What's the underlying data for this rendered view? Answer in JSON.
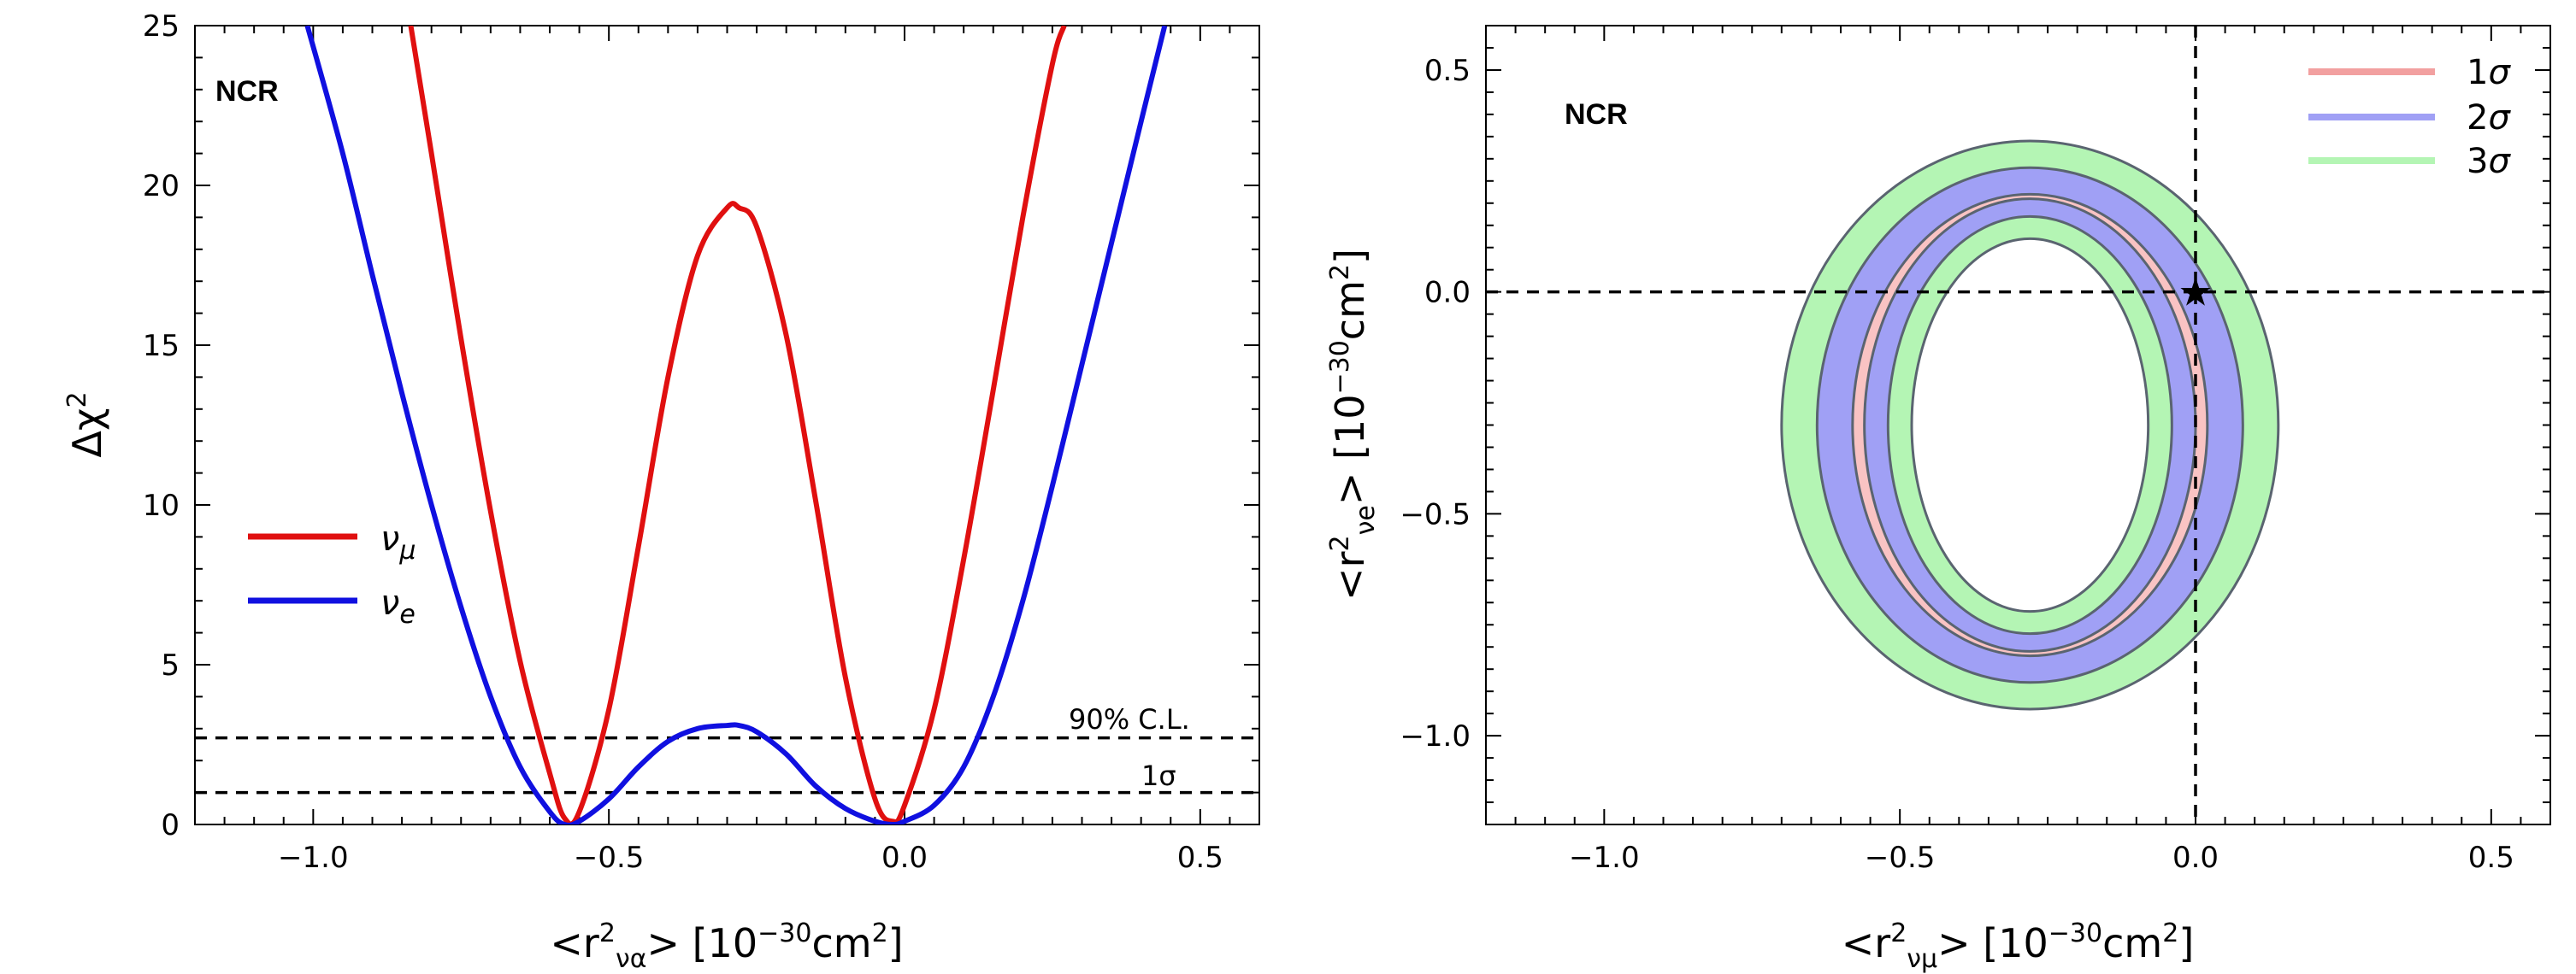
{
  "chart_data": [
    {
      "type": "line",
      "tag": "NCR",
      "xlabel": {
        "pre": "<r",
        "sup1": "2",
        "sub": "να",
        "post": "> [10",
        "sup2": "−30",
        "post2": "cm",
        "sup3": "2",
        "close": "]"
      },
      "ylabel": {
        "pre": "Δχ",
        "sup": "2"
      },
      "xlim": [
        -1.2,
        0.6
      ],
      "ylim": [
        0,
        25
      ],
      "xticks": [
        -1.0,
        -0.5,
        0.0,
        0.5
      ],
      "xtick_labels": [
        "−1.0",
        "−0.5",
        "0.0",
        "0.5"
      ],
      "yticks": [
        0,
        5,
        10,
        15,
        20,
        25
      ],
      "ytick_labels": [
        "0",
        "5",
        "10",
        "15",
        "20",
        "25"
      ],
      "series": [
        {
          "name": "ν_μ",
          "legend_main": "ν",
          "legend_sub": "μ",
          "color": "#e01010",
          "x": [
            -0.835,
            -0.8,
            -0.75,
            -0.7,
            -0.65,
            -0.6,
            -0.575,
            -0.55,
            -0.5,
            -0.45,
            -0.4,
            -0.35,
            -0.3,
            -0.28,
            -0.25,
            -0.2,
            -0.15,
            -0.1,
            -0.05,
            -0.02,
            0.0,
            0.05,
            0.1,
            0.15,
            0.2,
            0.25,
            0.27
          ],
          "y": [
            25,
            21.0,
            15.2,
            9.8,
            5.1,
            1.6,
            0.2,
            0.4,
            3.6,
            8.7,
            14.0,
            17.8,
            19.3,
            19.3,
            18.7,
            15.3,
            10.1,
            4.6,
            0.8,
            0.1,
            0.6,
            3.6,
            8.3,
            13.6,
            19.0,
            23.8,
            25
          ]
        },
        {
          "name": "ν_e",
          "legend_main": "ν",
          "legend_sub": "e",
          "color": "#1010e0",
          "x": [
            -1.01,
            -0.95,
            -0.9,
            -0.85,
            -0.8,
            -0.75,
            -0.7,
            -0.65,
            -0.6,
            -0.575,
            -0.55,
            -0.5,
            -0.45,
            -0.4,
            -0.35,
            -0.3,
            -0.28,
            -0.25,
            -0.2,
            -0.15,
            -0.1,
            -0.05,
            -0.02,
            0.0,
            0.05,
            0.1,
            0.15,
            0.2,
            0.25,
            0.3,
            0.35,
            0.4,
            0.44
          ],
          "y": [
            25,
            21.0,
            17.2,
            13.5,
            10.0,
            6.8,
            4.0,
            1.8,
            0.4,
            0.0,
            0.1,
            0.8,
            1.8,
            2.6,
            3.0,
            3.1,
            3.1,
            2.9,
            2.2,
            1.2,
            0.5,
            0.1,
            0.0,
            0.1,
            0.6,
            1.8,
            4.0,
            7.0,
            10.6,
            14.4,
            18.2,
            22.0,
            25
          ]
        }
      ],
      "reference_lines": [
        {
          "y": 2.71,
          "label": "90% C.L."
        },
        {
          "y": 1.0,
          "label": "1σ"
        }
      ]
    },
    {
      "type": "contour",
      "tag": "NCR",
      "xlabel": {
        "pre": "<r",
        "sup1": "2",
        "sub": "νμ",
        "post": "> [10",
        "sup2": "−30",
        "post2": "cm",
        "sup3": "2",
        "close": "]"
      },
      "ylabel": {
        "pre": "<r",
        "sup1": "2",
        "sub": "νe",
        "post": "> [10",
        "sup2": "−30",
        "post2": "cm",
        "sup3": "2",
        "close": "]"
      },
      "xlim": [
        -1.2,
        0.6
      ],
      "ylim": [
        -1.2,
        0.6
      ],
      "xticks": [
        -1.0,
        -0.5,
        0.0,
        0.5
      ],
      "xtick_labels": [
        "−1.0",
        "−0.5",
        "0.0",
        "0.5"
      ],
      "yticks": [
        -1.0,
        -0.5,
        0.0,
        0.5
      ],
      "ytick_labels": [
        "−1.0",
        "−0.5",
        "0.0",
        "0.5"
      ],
      "center": [
        -0.28,
        -0.3
      ],
      "regions": [
        {
          "name": "3σ",
          "color": "#b4f5b4",
          "outer": [
            0.42,
            0.64
          ],
          "inner": [
            0.2,
            0.42
          ]
        },
        {
          "name": "2σ",
          "color": "#a0a0f5",
          "outer": [
            0.36,
            0.58
          ],
          "inner": [
            0.24,
            0.47
          ]
        },
        {
          "name": "1σ",
          "color": "#f9c3c3",
          "outer": [
            0.3,
            0.52
          ],
          "inner": [
            0.28,
            0.51
          ]
        }
      ],
      "legend": [
        {
          "label": "1σ",
          "main": "1",
          "sym": "σ",
          "color": "#f2a0a0"
        },
        {
          "label": "2σ",
          "main": "2",
          "sym": "σ",
          "color": "#a0a0f5"
        },
        {
          "label": "3σ",
          "main": "3",
          "sym": "σ",
          "color": "#b4f5b4"
        }
      ],
      "best_fit": {
        "x": 0.0,
        "y": 0.0,
        "marker": "★",
        "color": "#ff0000"
      },
      "reference_lines": [
        {
          "x": 0.0
        },
        {
          "y": 0.0
        }
      ]
    }
  ]
}
